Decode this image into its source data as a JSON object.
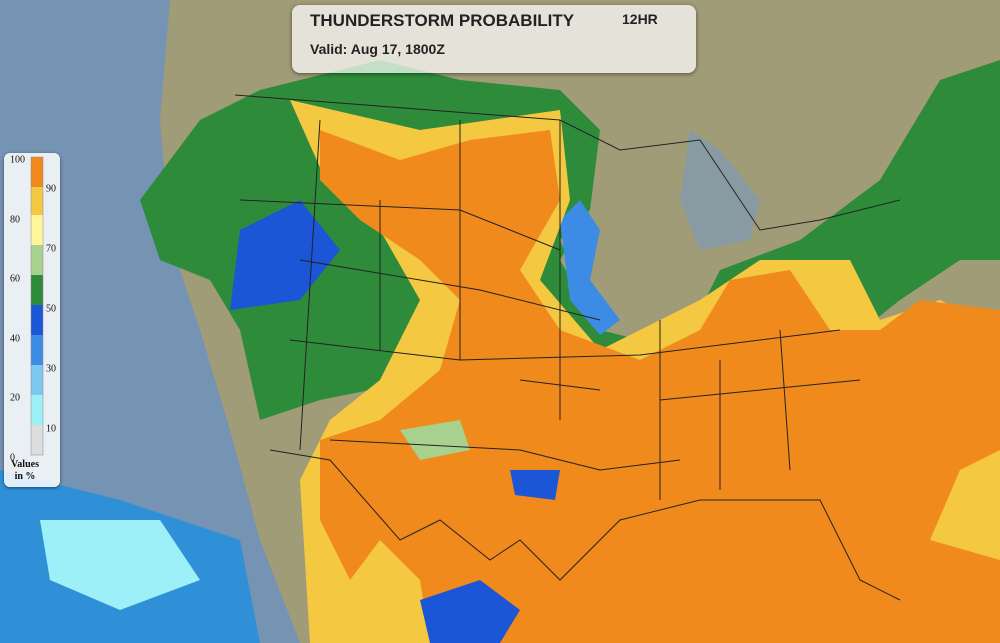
{
  "header": {
    "title": "THUNDERSTORM PROBABILITY",
    "period": "12HR",
    "valid": "Valid: Aug 17, 1800Z"
  },
  "legend": {
    "left_ticks": [
      100,
      80,
      60,
      40,
      20,
      0
    ],
    "right_ticks": [
      90,
      70,
      50,
      30,
      10
    ],
    "caption": "Values in %"
  }
}
